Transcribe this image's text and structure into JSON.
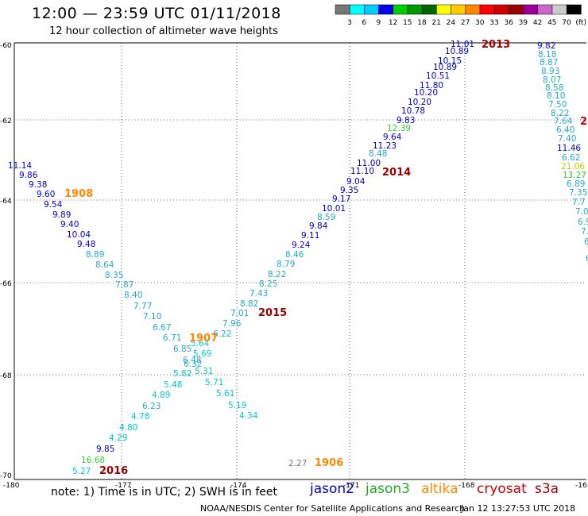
{
  "title": "12:00 — 23:59 UTC 01/11/2018",
  "subtitle": "12 hour collection of altimeter wave heights",
  "colorbar": {
    "colors": [
      "#777777",
      "#00ffff",
      "#00ccff",
      "#0000ee",
      "#00cc00",
      "#009900",
      "#006600",
      "#ffff00",
      "#ffcc00",
      "#ff8800",
      "#ff0000",
      "#cc0000",
      "#990000",
      "#990099",
      "#cc66cc",
      "#cccccc",
      "#000000"
    ],
    "labels": [
      "3",
      "6",
      "9",
      "12",
      "15",
      "18",
      "21",
      "24",
      "27",
      "30",
      "33",
      "36",
      "39",
      "42",
      "45",
      "70",
      "(ft)"
    ]
  },
  "axes": {
    "lat_labels": [
      "-60",
      "-62",
      "-64",
      "-66",
      "-68",
      "-70"
    ],
    "lon_labels": [
      "-180",
      "-177",
      "-174",
      "-171",
      "-168",
      "-16"
    ]
  },
  "colors": {
    "jason2": "#0000cc",
    "jason3": "#22aa22",
    "altika": "#ff8800",
    "cryosat": "#cc0000",
    "s3a": "#990000",
    "swh_lt6": "#00cccc",
    "swh_6_9": "#22aacc",
    "swh_gt9": "#0000cc",
    "swh_12": "#33cc33",
    "swh_21": "#cccc00",
    "swh_low": "#777777"
  },
  "tracks": [
    {
      "id": "1908",
      "time_color": "altika",
      "values": [
        {
          "v": "11.14",
          "c": "swh_gt9"
        },
        {
          "v": "9.86",
          "c": "swh_gt9"
        },
        {
          "v": "9.38",
          "c": "swh_gt9"
        },
        {
          "v": "9.60",
          "c": "swh_gt9"
        },
        {
          "v": "9.54",
          "c": "swh_gt9"
        },
        {
          "v": "9.89",
          "c": "swh_gt9"
        },
        {
          "v": "9.40",
          "c": "swh_gt9"
        },
        {
          "v": "10.04",
          "c": "swh_gt9"
        },
        {
          "v": "9.48",
          "c": "swh_gt9"
        },
        {
          "v": "8.89",
          "c": "swh_6_9"
        },
        {
          "v": "8.64",
          "c": "swh_6_9"
        },
        {
          "v": "8.35",
          "c": "swh_6_9"
        },
        {
          "v": "7.87",
          "c": "swh_6_9"
        },
        {
          "v": "8.40",
          "c": "swh_6_9"
        },
        {
          "v": "7.77",
          "c": "swh_6_9"
        },
        {
          "v": "7.10",
          "c": "swh_6_9"
        },
        {
          "v": "6.67",
          "c": "swh_6_9"
        },
        {
          "v": "6.71",
          "c": "swh_6_9"
        },
        {
          "v": "6.85",
          "c": "swh_6_9"
        },
        {
          "v": "6.48",
          "c": "swh_6_9"
        },
        {
          "v": "5.82",
          "c": "swh_lt6"
        },
        {
          "v": "5.71",
          "c": "swh_lt6"
        },
        {
          "v": "5.61",
          "c": "swh_lt6"
        },
        {
          "v": "5.19",
          "c": "swh_lt6"
        },
        {
          "v": "4.34",
          "c": "swh_lt6"
        }
      ]
    },
    {
      "id": "1907",
      "time_color": "altika",
      "values": [
        {
          "v": "5.64",
          "c": "swh_lt6"
        },
        {
          "v": "5.69",
          "c": "swh_lt6"
        },
        {
          "v": "6.32",
          "c": "swh_6_9"
        },
        {
          "v": "5.31",
          "c": "swh_lt6"
        },
        {
          "v": "5.48",
          "c": "swh_lt6"
        },
        {
          "v": "4.89",
          "c": "swh_lt6"
        },
        {
          "v": "6.23",
          "c": "swh_6_9"
        },
        {
          "v": "4.78",
          "c": "swh_lt6"
        },
        {
          "v": "4.80",
          "c": "swh_lt6"
        },
        {
          "v": "4.29",
          "c": "swh_lt6"
        },
        {
          "v": "9.85",
          "c": "swh_gt9"
        },
        {
          "v": "16.68",
          "c": "swh_12"
        },
        {
          "v": "5.27",
          "c": "swh_lt6"
        }
      ]
    },
    {
      "id": "2015",
      "values": [
        {
          "v": "6.22",
          "c": "swh_6_9"
        },
        {
          "v": "7.96",
          "c": "swh_6_9"
        },
        {
          "v": "7.01",
          "c": "swh_6_9"
        },
        {
          "v": "8.82",
          "c": "swh_6_9"
        },
        {
          "v": "7.43",
          "c": "swh_6_9"
        },
        {
          "v": "8.25",
          "c": "swh_6_9"
        },
        {
          "v": "8.22",
          "c": "swh_6_9"
        },
        {
          "v": "8.79",
          "c": "swh_6_9"
        },
        {
          "v": "8.46",
          "c": "swh_6_9"
        },
        {
          "v": "9.24",
          "c": "swh_gt9"
        },
        {
          "v": "9.11",
          "c": "swh_gt9"
        },
        {
          "v": "9.84",
          "c": "swh_gt9"
        },
        {
          "v": "8.59",
          "c": "swh_6_9"
        },
        {
          "v": "10.01",
          "c": "swh_gt9"
        },
        {
          "v": "9.17",
          "c": "swh_gt9"
        },
        {
          "v": "9.35",
          "c": "swh_gt9"
        },
        {
          "v": "9.04",
          "c": "swh_gt9"
        },
        {
          "v": "11.10",
          "c": "swh_gt9"
        },
        {
          "v": "11.00",
          "c": "swh_gt9"
        },
        {
          "v": "8.48",
          "c": "swh_6_9"
        },
        {
          "v": "11.23",
          "c": "swh_gt9"
        },
        {
          "v": "9.64",
          "c": "swh_gt9"
        },
        {
          "v": "12.39",
          "c": "swh_12"
        },
        {
          "v": "9.83",
          "c": "swh_gt9"
        },
        {
          "v": "10.78",
          "c": "swh_gt9"
        },
        {
          "v": "10.20",
          "c": "swh_gt9"
        },
        {
          "v": "10.20",
          "c": "swh_gt9"
        },
        {
          "v": "11.80",
          "c": "swh_gt9"
        },
        {
          "v": "10.51",
          "c": "swh_gt9"
        },
        {
          "v": "10.89",
          "c": "swh_gt9"
        },
        {
          "v": "10.15",
          "c": "swh_gt9"
        },
        {
          "v": "10.89",
          "c": "swh_gt9"
        },
        {
          "v": "11.01",
          "c": "swh_gt9"
        }
      ]
    },
    {
      "id": "2013",
      "values": [
        {
          "v": "9.82",
          "c": "swh_gt9"
        },
        {
          "v": "8.18",
          "c": "swh_6_9"
        },
        {
          "v": "8.87",
          "c": "swh_6_9"
        },
        {
          "v": "8.93",
          "c": "swh_6_9"
        },
        {
          "v": "8.07",
          "c": "swh_6_9"
        },
        {
          "v": "8.58",
          "c": "swh_6_9"
        },
        {
          "v": "8.10",
          "c": "swh_6_9"
        },
        {
          "v": "7.50",
          "c": "swh_6_9"
        },
        {
          "v": "8.22",
          "c": "swh_6_9"
        },
        {
          "v": "7.64",
          "c": "swh_6_9"
        },
        {
          "v": "6.40",
          "c": "swh_6_9"
        },
        {
          "v": "7.40",
          "c": "swh_6_9"
        },
        {
          "v": "11.46",
          "c": "swh_gt9"
        },
        {
          "v": "6.62",
          "c": "swh_6_9"
        },
        {
          "v": "21.06",
          "c": "swh_21"
        },
        {
          "v": "13.27",
          "c": "swh_12"
        },
        {
          "v": "6.89",
          "c": "swh_6_9"
        },
        {
          "v": "7.35",
          "c": "swh_6_9"
        },
        {
          "v": "7.7",
          "c": "swh_6_9"
        },
        {
          "v": "7.0",
          "c": "swh_6_9"
        },
        {
          "v": "6.9",
          "c": "swh_6_9"
        },
        {
          "v": "7.",
          "c": "swh_6_9"
        },
        {
          "v": "6.",
          "c": "swh_6_9"
        },
        {
          "v": "6",
          "c": "swh_6_9"
        }
      ]
    },
    {
      "id": "1906",
      "values": [
        {
          "v": "2.27",
          "c": "swh_low"
        }
      ]
    }
  ],
  "track_labels": [
    {
      "text": "2013",
      "c": "s3a"
    },
    {
      "text": "2014",
      "c": "s3a"
    },
    {
      "text": "1908",
      "c": "altika"
    },
    {
      "text": "1907",
      "c": "altika"
    },
    {
      "text": "2015",
      "c": "s3a"
    },
    {
      "text": "2016",
      "c": "s3a"
    },
    {
      "text": "1906",
      "c": "altika"
    },
    {
      "text": "2",
      "c": "cryosat"
    }
  ],
  "footer": {
    "note": "note:  1) Time is in UTC; 2) SWH is in feet",
    "satellites": [
      {
        "name": "jason2",
        "c": "jason2"
      },
      {
        "name": "jason3",
        "c": "jason3"
      },
      {
        "name": "altika",
        "c": "altika"
      },
      {
        "name": "cryosat",
        "c": "cryosat"
      },
      {
        "name": "s3a",
        "c": "s3a"
      }
    ],
    "credit": "NOAA/NESDIS Center for Satellite Applications and Research",
    "timestamp": "Jan 12 13:27:53 UTC 2018"
  }
}
